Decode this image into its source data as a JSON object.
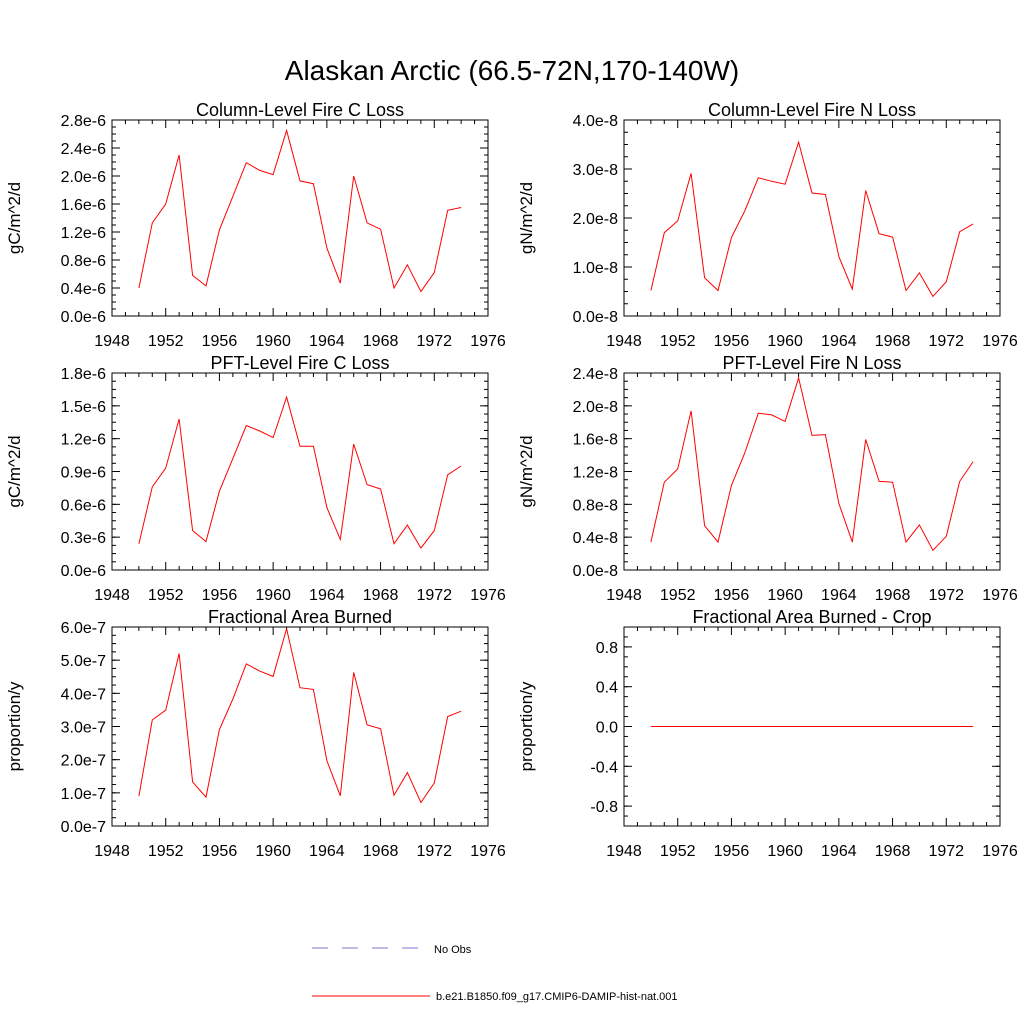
{
  "figure": {
    "title": "Alaskan Arctic (66.5-72N,170-140W)",
    "series_color": "#ff0000",
    "obs_color": "#7777cc"
  },
  "legend": {
    "position": "bottom-center",
    "entries": [
      {
        "label": "No Obs",
        "style": "dashed",
        "color": "#7777cc"
      },
      {
        "label": "b.e21.B1850.f09_g17.CMIP6-DAMIP-hist-nat.001",
        "style": "solid",
        "color": "#ff0000"
      }
    ]
  },
  "chart_data": [
    {
      "type": "line",
      "title": "Column-Level Fire C Loss",
      "ylabel": "gC/m^2/d",
      "xlim": [
        1948,
        1976
      ],
      "ylim": [
        0,
        2.8e-06
      ],
      "xticks": [
        "1948",
        "1952",
        "1956",
        "1960",
        "1964",
        "1968",
        "1972",
        "1976"
      ],
      "yticks": [
        "0.0e-6",
        "0.4e-6",
        "0.8e-6",
        "1.2e-6",
        "1.6e-6",
        "2.0e-6",
        "2.4e-6",
        "2.8e-6"
      ],
      "x": [
        1950,
        1951,
        1952,
        1953,
        1954,
        1955,
        1956,
        1957,
        1958,
        1959,
        1960,
        1961,
        1962,
        1963,
        1964,
        1965,
        1966,
        1967,
        1968,
        1969,
        1970,
        1971,
        1972,
        1973,
        1974
      ],
      "values": [
        4e-07,
        1.33e-06,
        1.6e-06,
        2.3e-06,
        5.8e-07,
        4.3e-07,
        1.23e-06,
        1.71e-06,
        2.19e-06,
        2.08e-06,
        2.02e-06,
        2.65e-06,
        1.93e-06,
        1.89e-06,
        9.7e-07,
        4.7e-07,
        2e-06,
        1.33e-06,
        1.24e-06,
        4e-07,
        7.3e-07,
        3.5e-07,
        6.2e-07,
        1.51e-06,
        1.55e-06
      ]
    },
    {
      "type": "line",
      "title": "Column-Level Fire N Loss",
      "ylabel": "gN/m^2/d",
      "xlim": [
        1948,
        1976
      ],
      "ylim": [
        0,
        4e-08
      ],
      "xticks": [
        "1948",
        "1952",
        "1956",
        "1960",
        "1964",
        "1968",
        "1972",
        "1976"
      ],
      "yticks": [
        "0.0e-8",
        "1.0e-8",
        "2.0e-8",
        "3.0e-8",
        "4.0e-8"
      ],
      "x": [
        1950,
        1951,
        1952,
        1953,
        1954,
        1955,
        1956,
        1957,
        1958,
        1959,
        1960,
        1961,
        1962,
        1963,
        1964,
        1965,
        1966,
        1967,
        1968,
        1969,
        1970,
        1971,
        1972,
        1973,
        1974
      ],
      "values": [
        5.2e-09,
        1.7e-08,
        1.94e-08,
        2.91e-08,
        7.8e-09,
        5.2e-09,
        1.6e-08,
        2.15e-08,
        2.82e-08,
        2.75e-08,
        2.69e-08,
        3.55e-08,
        2.51e-08,
        2.48e-08,
        1.21e-08,
        5.5e-09,
        2.56e-08,
        1.68e-08,
        1.61e-08,
        5.2e-09,
        8.8e-09,
        4e-09,
        7e-09,
        1.72e-08,
        1.88e-08
      ]
    },
    {
      "type": "line",
      "title": "PFT-Level Fire C Loss",
      "ylabel": "gC/m^2/d",
      "xlim": [
        1948,
        1976
      ],
      "ylim": [
        0,
        1.8e-06
      ],
      "xticks": [
        "1948",
        "1952",
        "1956",
        "1960",
        "1964",
        "1968",
        "1972",
        "1976"
      ],
      "yticks": [
        "0.0e-6",
        "0.3e-6",
        "0.6e-6",
        "0.9e-6",
        "1.2e-6",
        "1.5e-6",
        "1.8e-6"
      ],
      "x": [
        1950,
        1951,
        1952,
        1953,
        1954,
        1955,
        1956,
        1957,
        1958,
        1959,
        1960,
        1961,
        1962,
        1963,
        1964,
        1965,
        1966,
        1967,
        1968,
        1969,
        1970,
        1971,
        1972,
        1973,
        1974
      ],
      "values": [
        2.4e-07,
        7.6e-07,
        9.3e-07,
        1.38e-06,
        3.6e-07,
        2.6e-07,
        7.2e-07,
        1.02e-06,
        1.32e-06,
        1.27e-06,
        1.21e-06,
        1.58e-06,
        1.13e-06,
        1.13e-06,
        5.7e-07,
        2.8e-07,
        1.15e-06,
        7.8e-07,
        7.4e-07,
        2.4e-07,
        4.1e-07,
        2e-07,
        3.6e-07,
        8.7e-07,
        9.5e-07
      ]
    },
    {
      "type": "line",
      "title": "PFT-Level Fire N Loss",
      "ylabel": "gN/m^2/d",
      "xlim": [
        1948,
        1976
      ],
      "ylim": [
        0,
        2.4e-08
      ],
      "xticks": [
        "1948",
        "1952",
        "1956",
        "1960",
        "1964",
        "1968",
        "1972",
        "1976"
      ],
      "yticks": [
        "0.0e-8",
        "0.4e-8",
        "0.8e-8",
        "1.2e-8",
        "1.6e-8",
        "2.0e-8",
        "2.4e-8"
      ],
      "x": [
        1950,
        1951,
        1952,
        1953,
        1954,
        1955,
        1956,
        1957,
        1958,
        1959,
        1960,
        1961,
        1962,
        1963,
        1964,
        1965,
        1966,
        1967,
        1968,
        1969,
        1970,
        1971,
        1972,
        1973,
        1974
      ],
      "values": [
        3.4e-09,
        1.07e-08,
        1.23e-08,
        1.94e-08,
        5.4e-09,
        3.4e-09,
        1.03e-08,
        1.43e-08,
        1.91e-08,
        1.89e-08,
        1.81e-08,
        2.34e-08,
        1.64e-08,
        1.65e-08,
        8.1e-09,
        3.4e-09,
        1.59e-08,
        1.08e-08,
        1.07e-08,
        3.4e-09,
        5.5e-09,
        2.4e-09,
        4.1e-09,
        1.08e-08,
        1.32e-08
      ]
    },
    {
      "type": "line",
      "title": "Fractional Area Burned",
      "ylabel": "proportion/y",
      "xlim": [
        1948,
        1976
      ],
      "ylim": [
        0,
        6e-07
      ],
      "xticks": [
        "1948",
        "1952",
        "1956",
        "1960",
        "1964",
        "1968",
        "1972",
        "1976"
      ],
      "yticks": [
        "0.0e-7",
        "1.0e-7",
        "2.0e-7",
        "3.0e-7",
        "4.0e-7",
        "5.0e-7",
        "6.0e-7"
      ],
      "x": [
        1950,
        1951,
        1952,
        1953,
        1954,
        1955,
        1956,
        1957,
        1958,
        1959,
        1960,
        1961,
        1962,
        1963,
        1964,
        1965,
        1966,
        1967,
        1968,
        1969,
        1970,
        1971,
        1972,
        1973,
        1974
      ],
      "values": [
        9e-08,
        3.2e-07,
        3.49e-07,
        5.2e-07,
        1.33e-07,
        8.7e-08,
        2.91e-07,
        3.83e-07,
        4.89e-07,
        4.67e-07,
        4.51e-07,
        5.95e-07,
        4.17e-07,
        4.12e-07,
        1.97e-07,
        9.1e-08,
        4.63e-07,
        3.05e-07,
        2.93e-07,
        9.3e-08,
        1.61e-07,
        7.1e-08,
        1.3e-07,
        3.3e-07,
        3.46e-07
      ]
    },
    {
      "type": "line",
      "title": "Fractional Area Burned - Crop",
      "ylabel": "proportion/y",
      "xlim": [
        1948,
        1976
      ],
      "ylim": [
        -1.0,
        1.0
      ],
      "xticks": [
        "1948",
        "1952",
        "1956",
        "1960",
        "1964",
        "1968",
        "1972",
        "1976"
      ],
      "yticks": [
        "-0.8",
        "-0.4",
        "0.0",
        "0.4",
        "0.8"
      ],
      "x": [
        1950,
        1951,
        1952,
        1953,
        1954,
        1955,
        1956,
        1957,
        1958,
        1959,
        1960,
        1961,
        1962,
        1963,
        1964,
        1965,
        1966,
        1967,
        1968,
        1969,
        1970,
        1971,
        1972,
        1973,
        1974
      ],
      "values": [
        0,
        0,
        0,
        0,
        0,
        0,
        0,
        0,
        0,
        0,
        0,
        0,
        0,
        0,
        0,
        0,
        0,
        0,
        0,
        0,
        0,
        0,
        0,
        0,
        0
      ]
    }
  ]
}
